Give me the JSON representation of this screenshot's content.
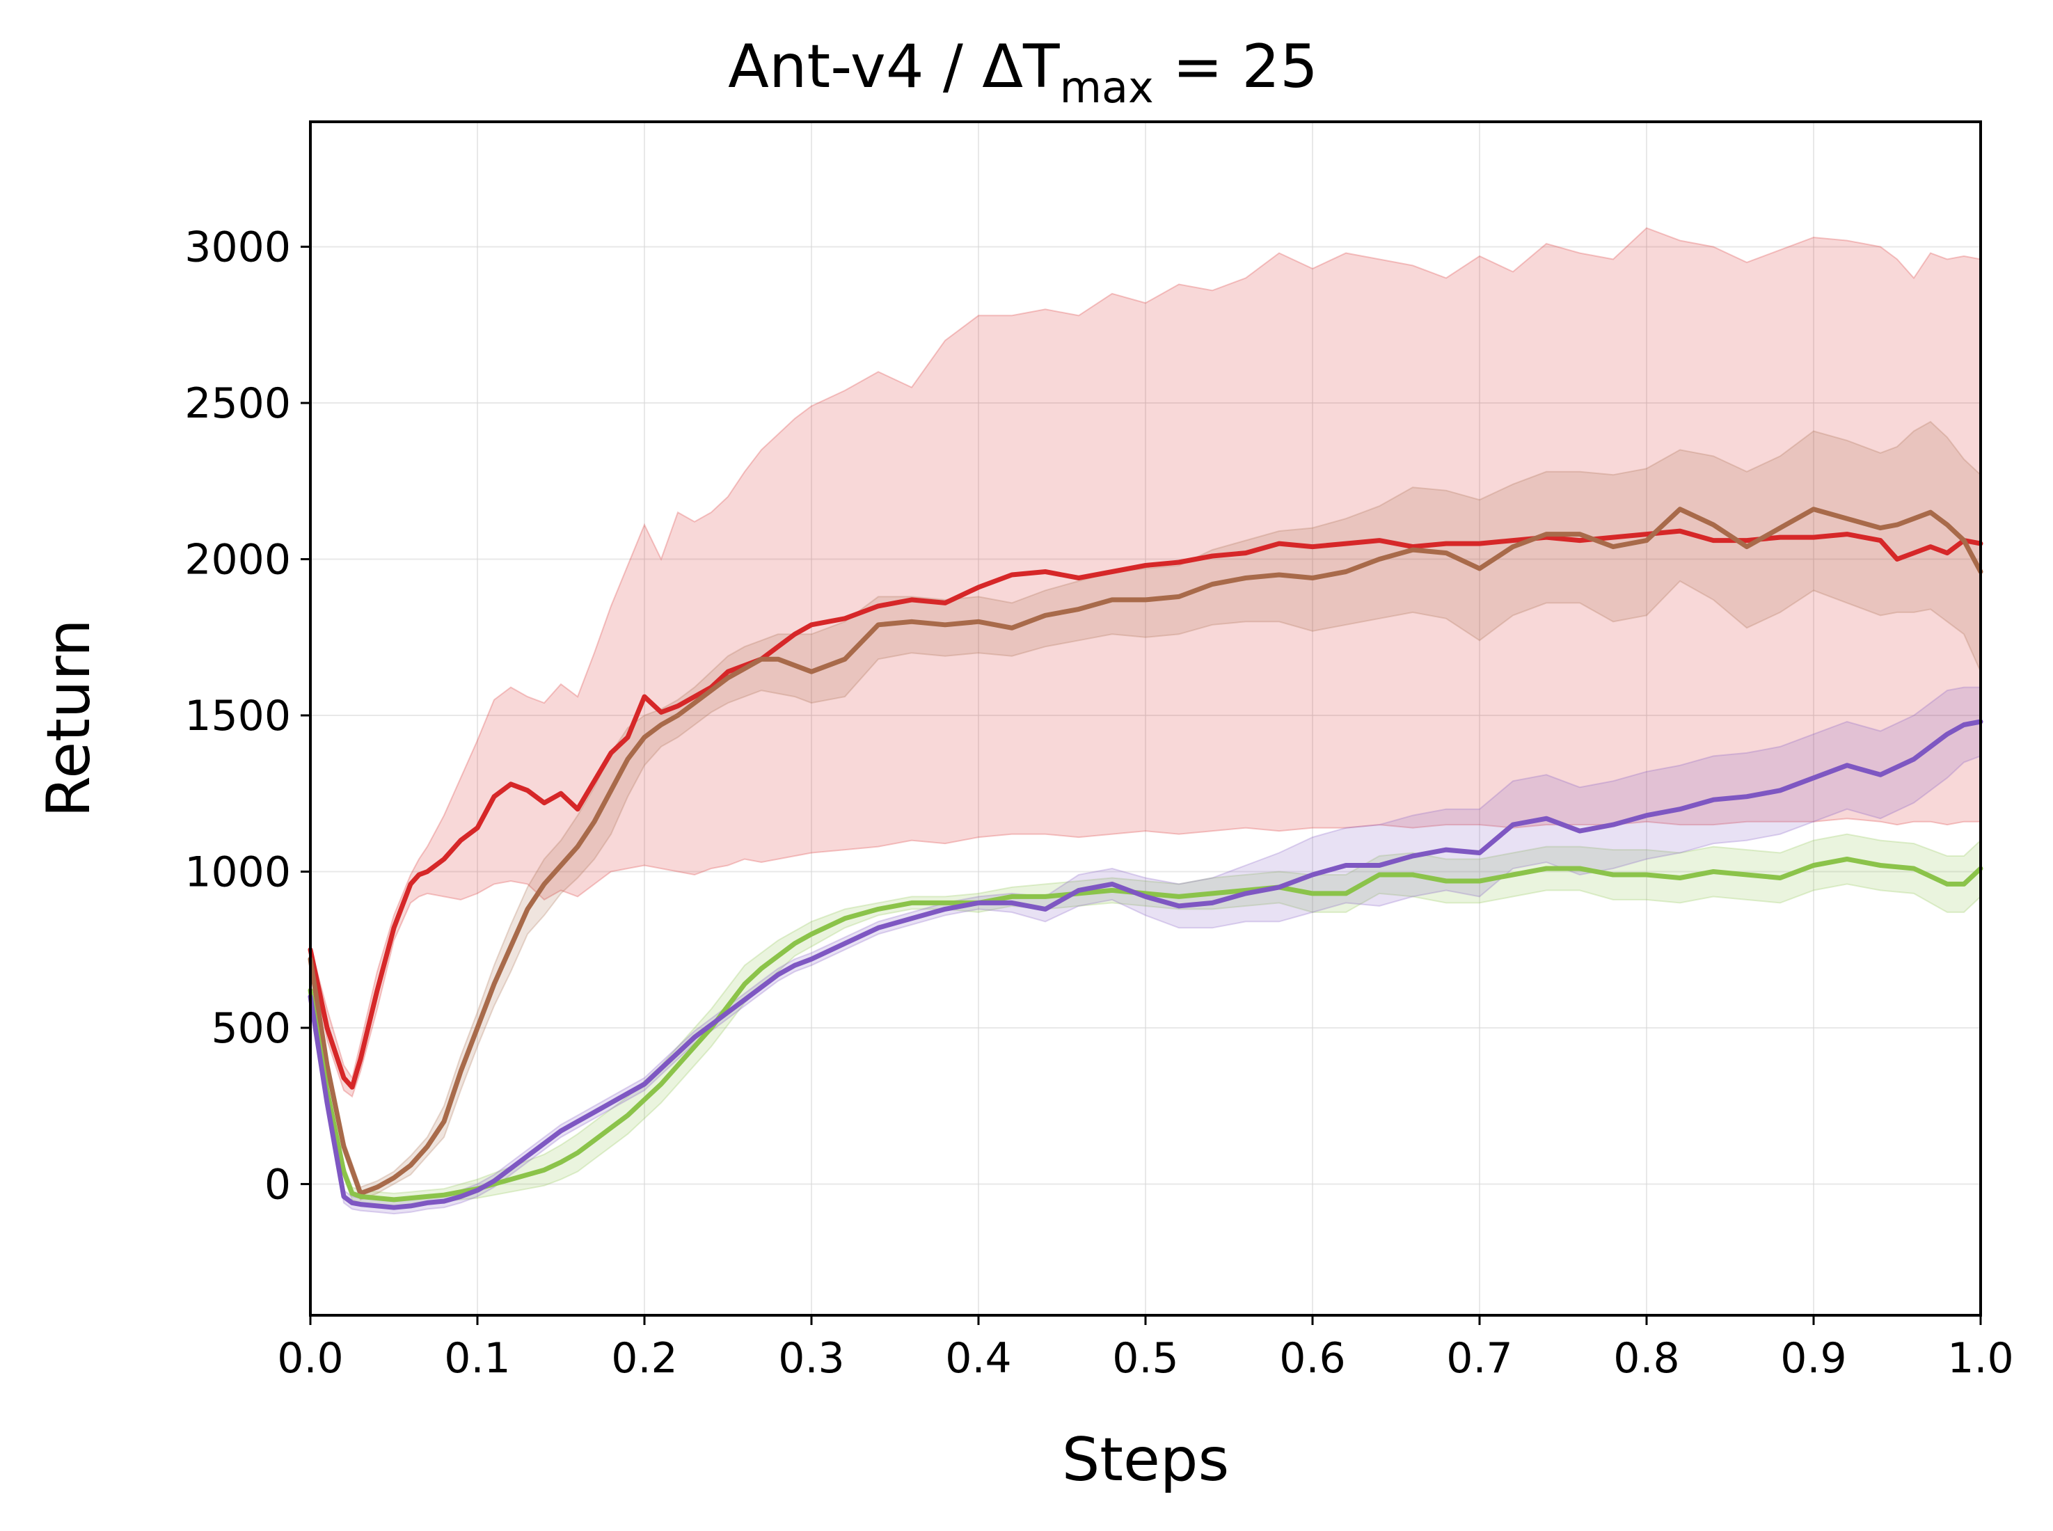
{
  "chart_data": {
    "type": "line",
    "title": {
      "main": "Ant-v4 / ΔT",
      "sub": "max",
      "tail": " = 25"
    },
    "xlabel": "Steps",
    "ylabel": "Return",
    "xlim": [
      0.0,
      1.0
    ],
    "ylim": [
      -420,
      3400
    ],
    "xticks": [
      0.0,
      0.1,
      0.2,
      0.3,
      0.4,
      0.5,
      0.6,
      0.7,
      0.8,
      0.9,
      1.0
    ],
    "xtick_labels": [
      "0.0",
      "0.1",
      "0.2",
      "0.3",
      "0.4",
      "0.5",
      "0.6",
      "0.7",
      "0.8",
      "0.9",
      "1.0"
    ],
    "yticks": [
      0,
      500,
      1000,
      1500,
      2000,
      2500,
      3000
    ],
    "ytick_labels": [
      "0",
      "500",
      "1000",
      "1500",
      "2000",
      "2500",
      "3000"
    ],
    "grid": true,
    "legend": "none",
    "series": [
      {
        "color": "#d62728",
        "x": [
          0.0,
          0.01,
          0.02,
          0.025,
          0.03,
          0.04,
          0.05,
          0.06,
          0.065,
          0.07,
          0.08,
          0.09,
          0.1,
          0.11,
          0.12,
          0.13,
          0.14,
          0.15,
          0.16,
          0.17,
          0.18,
          0.19,
          0.2,
          0.21,
          0.22,
          0.23,
          0.24,
          0.25,
          0.26,
          0.27,
          0.28,
          0.29,
          0.3,
          0.32,
          0.34,
          0.36,
          0.38,
          0.4,
          0.42,
          0.44,
          0.46,
          0.48,
          0.5,
          0.52,
          0.54,
          0.56,
          0.58,
          0.6,
          0.62,
          0.64,
          0.66,
          0.68,
          0.7,
          0.72,
          0.74,
          0.76,
          0.78,
          0.8,
          0.82,
          0.84,
          0.86,
          0.88,
          0.9,
          0.92,
          0.94,
          0.95,
          0.96,
          0.97,
          0.98,
          0.99,
          1.0
        ],
        "y": [
          750,
          500,
          340,
          310,
          400,
          620,
          820,
          960,
          990,
          1000,
          1040,
          1100,
          1140,
          1240,
          1280,
          1260,
          1220,
          1250,
          1200,
          1290,
          1380,
          1430,
          1560,
          1510,
          1530,
          1560,
          1590,
          1640,
          1660,
          1680,
          1720,
          1760,
          1790,
          1810,
          1850,
          1870,
          1860,
          1910,
          1950,
          1960,
          1940,
          1960,
          1980,
          1990,
          2010,
          2020,
          2050,
          2040,
          2050,
          2060,
          2040,
          2050,
          2050,
          2060,
          2070,
          2060,
          2070,
          2080,
          2090,
          2060,
          2060,
          2070,
          2070,
          2080,
          2060,
          2000,
          2020,
          2040,
          2020,
          2060,
          2050
        ],
        "band_upper": [
          760,
          560,
          380,
          340,
          450,
          680,
          860,
          990,
          1040,
          1080,
          1180,
          1300,
          1420,
          1550,
          1590,
          1560,
          1540,
          1600,
          1560,
          1700,
          1850,
          1980,
          2110,
          2000,
          2150,
          2120,
          2150,
          2200,
          2280,
          2350,
          2400,
          2450,
          2490,
          2540,
          2600,
          2550,
          2700,
          2780,
          2780,
          2800,
          2780,
          2850,
          2820,
          2880,
          2860,
          2900,
          2980,
          2930,
          2980,
          2960,
          2940,
          2900,
          2970,
          2920,
          3010,
          2980,
          2960,
          3060,
          3020,
          3000,
          2950,
          2990,
          3030,
          3020,
          3000,
          2960,
          2900,
          2980,
          2960,
          2970,
          2960
        ],
        "band_lower": [
          740,
          460,
          300,
          280,
          360,
          560,
          780,
          900,
          920,
          930,
          920,
          910,
          930,
          960,
          970,
          960,
          910,
          940,
          920,
          960,
          1000,
          1010,
          1020,
          1010,
          1000,
          990,
          1010,
          1020,
          1040,
          1030,
          1040,
          1050,
          1060,
          1070,
          1080,
          1100,
          1090,
          1110,
          1120,
          1120,
          1110,
          1120,
          1130,
          1120,
          1130,
          1140,
          1130,
          1140,
          1140,
          1150,
          1140,
          1150,
          1150,
          1140,
          1150,
          1150,
          1150,
          1160,
          1150,
          1150,
          1160,
          1160,
          1160,
          1170,
          1160,
          1150,
          1160,
          1160,
          1150,
          1160,
          1160
        ]
      },
      {
        "color": "#a86a4a",
        "x": [
          0.0,
          0.01,
          0.02,
          0.03,
          0.04,
          0.05,
          0.06,
          0.07,
          0.08,
          0.09,
          0.1,
          0.11,
          0.12,
          0.13,
          0.14,
          0.15,
          0.16,
          0.17,
          0.18,
          0.19,
          0.2,
          0.21,
          0.22,
          0.23,
          0.24,
          0.25,
          0.26,
          0.27,
          0.28,
          0.29,
          0.3,
          0.32,
          0.34,
          0.36,
          0.38,
          0.4,
          0.42,
          0.44,
          0.46,
          0.48,
          0.5,
          0.52,
          0.54,
          0.56,
          0.58,
          0.6,
          0.62,
          0.64,
          0.66,
          0.68,
          0.7,
          0.72,
          0.74,
          0.76,
          0.78,
          0.8,
          0.82,
          0.84,
          0.86,
          0.88,
          0.9,
          0.92,
          0.94,
          0.95,
          0.96,
          0.97,
          0.98,
          0.99,
          1.0
        ],
        "y": [
          720,
          380,
          120,
          -30,
          -10,
          20,
          60,
          120,
          200,
          360,
          500,
          640,
          760,
          880,
          960,
          1020,
          1080,
          1160,
          1260,
          1360,
          1430,
          1470,
          1500,
          1540,
          1580,
          1620,
          1650,
          1680,
          1680,
          1660,
          1640,
          1680,
          1790,
          1800,
          1790,
          1800,
          1780,
          1820,
          1840,
          1870,
          1870,
          1880,
          1920,
          1940,
          1950,
          1940,
          1960,
          2000,
          2030,
          2020,
          1970,
          2040,
          2080,
          2080,
          2040,
          2060,
          2160,
          2110,
          2040,
          2100,
          2160,
          2130,
          2100,
          2110,
          2130,
          2150,
          2110,
          2060,
          1960
        ],
        "band_upper": [
          730,
          400,
          140,
          -10,
          10,
          40,
          90,
          150,
          250,
          410,
          550,
          700,
          830,
          950,
          1040,
          1100,
          1180,
          1270,
          1380,
          1460,
          1500,
          1520,
          1550,
          1590,
          1640,
          1690,
          1720,
          1740,
          1760,
          1760,
          1760,
          1800,
          1880,
          1880,
          1870,
          1880,
          1860,
          1900,
          1930,
          1960,
          1970,
          1980,
          2030,
          2060,
          2090,
          2100,
          2130,
          2170,
          2230,
          2220,
          2190,
          2240,
          2280,
          2280,
          2270,
          2290,
          2350,
          2330,
          2280,
          2330,
          2410,
          2380,
          2340,
          2360,
          2410,
          2440,
          2390,
          2320,
          2270
        ],
        "band_lower": [
          710,
          360,
          100,
          -50,
          -30,
          0,
          30,
          90,
          150,
          300,
          440,
          570,
          680,
          800,
          860,
          930,
          980,
          1040,
          1120,
          1240,
          1340,
          1400,
          1430,
          1470,
          1510,
          1540,
          1560,
          1580,
          1570,
          1560,
          1540,
          1560,
          1680,
          1700,
          1690,
          1700,
          1690,
          1720,
          1740,
          1760,
          1750,
          1760,
          1790,
          1800,
          1800,
          1770,
          1790,
          1810,
          1830,
          1810,
          1740,
          1820,
          1860,
          1860,
          1800,
          1820,
          1930,
          1870,
          1780,
          1830,
          1900,
          1860,
          1820,
          1830,
          1830,
          1840,
          1800,
          1760,
          1640
        ]
      },
      {
        "color": "#8bc34a",
        "x": [
          0.0,
          0.01,
          0.02,
          0.025,
          0.03,
          0.04,
          0.05,
          0.06,
          0.07,
          0.08,
          0.09,
          0.1,
          0.11,
          0.12,
          0.13,
          0.14,
          0.15,
          0.16,
          0.17,
          0.18,
          0.19,
          0.2,
          0.21,
          0.22,
          0.23,
          0.24,
          0.25,
          0.26,
          0.27,
          0.28,
          0.29,
          0.3,
          0.32,
          0.34,
          0.36,
          0.38,
          0.4,
          0.42,
          0.44,
          0.46,
          0.48,
          0.5,
          0.52,
          0.54,
          0.56,
          0.58,
          0.6,
          0.62,
          0.64,
          0.66,
          0.68,
          0.7,
          0.72,
          0.74,
          0.76,
          0.78,
          0.8,
          0.82,
          0.84,
          0.86,
          0.88,
          0.9,
          0.92,
          0.94,
          0.96,
          0.98,
          0.99,
          1.0
        ],
        "y": [
          620,
          300,
          40,
          -30,
          -40,
          -45,
          -50,
          -45,
          -40,
          -35,
          -25,
          -15,
          0,
          15,
          30,
          45,
          70,
          100,
          140,
          180,
          220,
          270,
          320,
          380,
          440,
          500,
          570,
          640,
          690,
          730,
          770,
          800,
          850,
          880,
          900,
          900,
          900,
          920,
          920,
          930,
          940,
          930,
          920,
          930,
          940,
          950,
          930,
          930,
          990,
          990,
          970,
          970,
          990,
          1010,
          1010,
          990,
          990,
          980,
          1000,
          990,
          980,
          1020,
          1040,
          1020,
          1010,
          960,
          960,
          1010
        ],
        "band_upper": [
          630,
          320,
          60,
          -10,
          -20,
          -25,
          -30,
          -25,
          -20,
          -15,
          0,
          15,
          35,
          55,
          75,
          95,
          125,
          160,
          200,
          240,
          280,
          330,
          380,
          440,
          500,
          560,
          630,
          700,
          740,
          780,
          810,
          840,
          880,
          900,
          920,
          920,
          930,
          950,
          960,
          970,
          980,
          970,
          960,
          980,
          990,
          1000,
          990,
          990,
          1050,
          1060,
          1040,
          1040,
          1060,
          1080,
          1080,
          1070,
          1070,
          1060,
          1080,
          1070,
          1060,
          1100,
          1120,
          1100,
          1090,
          1050,
          1050,
          1100
        ],
        "band_lower": [
          610,
          280,
          20,
          -50,
          -60,
          -65,
          -70,
          -65,
          -60,
          -55,
          -50,
          -45,
          -35,
          -25,
          -15,
          -5,
          15,
          40,
          80,
          120,
          160,
          210,
          260,
          320,
          380,
          440,
          510,
          580,
          630,
          680,
          730,
          760,
          820,
          860,
          880,
          880,
          870,
          890,
          880,
          890,
          900,
          890,
          880,
          880,
          890,
          900,
          870,
          870,
          930,
          920,
          900,
          900,
          920,
          940,
          940,
          910,
          910,
          900,
          920,
          910,
          900,
          940,
          960,
          940,
          930,
          870,
          870,
          920
        ]
      },
      {
        "color": "#7e57c2",
        "x": [
          0.0,
          0.01,
          0.02,
          0.025,
          0.03,
          0.04,
          0.05,
          0.06,
          0.07,
          0.08,
          0.09,
          0.1,
          0.11,
          0.12,
          0.13,
          0.14,
          0.15,
          0.16,
          0.17,
          0.18,
          0.19,
          0.2,
          0.21,
          0.22,
          0.23,
          0.24,
          0.25,
          0.26,
          0.27,
          0.28,
          0.29,
          0.3,
          0.32,
          0.34,
          0.36,
          0.38,
          0.4,
          0.42,
          0.44,
          0.46,
          0.48,
          0.5,
          0.52,
          0.54,
          0.56,
          0.58,
          0.6,
          0.62,
          0.64,
          0.66,
          0.68,
          0.7,
          0.72,
          0.74,
          0.76,
          0.78,
          0.8,
          0.82,
          0.84,
          0.86,
          0.88,
          0.9,
          0.92,
          0.94,
          0.96,
          0.98,
          0.99,
          1.0
        ],
        "y": [
          600,
          260,
          -40,
          -60,
          -65,
          -70,
          -75,
          -70,
          -60,
          -55,
          -40,
          -20,
          10,
          50,
          90,
          130,
          170,
          200,
          230,
          260,
          290,
          320,
          370,
          420,
          470,
          510,
          550,
          590,
          630,
          670,
          700,
          720,
          770,
          820,
          850,
          880,
          900,
          900,
          880,
          940,
          960,
          920,
          890,
          900,
          930,
          950,
          990,
          1020,
          1020,
          1050,
          1070,
          1060,
          1150,
          1170,
          1130,
          1150,
          1180,
          1200,
          1230,
          1240,
          1260,
          1300,
          1340,
          1310,
          1360,
          1440,
          1470,
          1480
        ],
        "band_upper": [
          610,
          280,
          -20,
          -40,
          -45,
          -50,
          -55,
          -50,
          -40,
          -35,
          -20,
          0,
          30,
          70,
          110,
          150,
          190,
          220,
          250,
          280,
          310,
          340,
          390,
          440,
          490,
          530,
          570,
          610,
          650,
          690,
          720,
          740,
          790,
          840,
          870,
          900,
          920,
          930,
          920,
          990,
          1010,
          980,
          960,
          980,
          1020,
          1060,
          1110,
          1140,
          1150,
          1180,
          1200,
          1200,
          1290,
          1310,
          1270,
          1290,
          1320,
          1340,
          1370,
          1380,
          1400,
          1440,
          1480,
          1450,
          1500,
          1580,
          1590,
          1590
        ],
        "band_lower": [
          590,
          240,
          -60,
          -80,
          -85,
          -90,
          -95,
          -90,
          -80,
          -75,
          -60,
          -40,
          -10,
          30,
          70,
          110,
          150,
          180,
          210,
          240,
          270,
          300,
          350,
          400,
          450,
          490,
          530,
          570,
          610,
          650,
          680,
          700,
          750,
          800,
          830,
          860,
          880,
          870,
          840,
          890,
          910,
          860,
          820,
          820,
          840,
          840,
          870,
          900,
          890,
          920,
          940,
          920,
          1010,
          1030,
          990,
          1010,
          1040,
          1060,
          1090,
          1100,
          1120,
          1160,
          1200,
          1170,
          1220,
          1300,
          1350,
          1370
        ]
      }
    ]
  }
}
